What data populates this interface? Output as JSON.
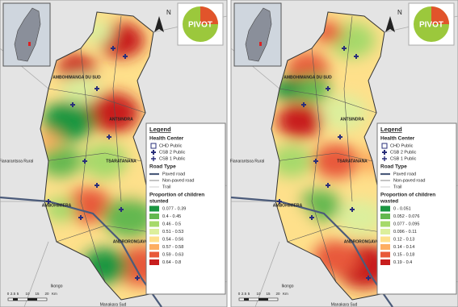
{
  "panels": [
    {
      "logo": "PIVOT",
      "north": "N",
      "places": [
        "AMBOHIMANGA DU SUD",
        "ANTSINDRA",
        "TSARATANANA",
        "AMBOHIMIERA",
        "ANDRORONGAVOLA",
        "Fianarantsoa Rural",
        "Ikongo",
        "Manakara Sud"
      ],
      "legend": {
        "title": "Legend",
        "health_title": "Health Center",
        "health_items": [
          "CHD Public",
          "CSB 2 Public",
          "CSB 1 Public"
        ],
        "road_title": "Road Type",
        "road_items": [
          "Paved road",
          "Non-paved road",
          "Trail"
        ],
        "prop_title": [
          "Proportion of children",
          "stunted"
        ],
        "classes": [
          {
            "label": "0.077 - 0.39",
            "color": "#1a9641"
          },
          {
            "label": "0.4 - 0.45",
            "color": "#63b84f"
          },
          {
            "label": "0.46 - 0.5",
            "color": "#a6d96a"
          },
          {
            "label": "0.51 - 0.53",
            "color": "#dcef9c"
          },
          {
            "label": "0.54 - 0.56",
            "color": "#fee08b"
          },
          {
            "label": "0.57 - 0.58",
            "color": "#fdae61"
          },
          {
            "label": "0.59 - 0.63",
            "color": "#e8593a"
          },
          {
            "label": "0.64 - 0.8",
            "color": "#c81e1e"
          }
        ]
      },
      "scale": {
        "ticks": [
          "0",
          "2.5",
          "5",
          "10",
          "15",
          "20"
        ],
        "unit": "Km"
      }
    },
    {
      "logo": "PIVOT",
      "north": "N",
      "places": [
        "AMBOHIMANGA DU SUD",
        "ANTSINDRA",
        "TSARATANANA",
        "AMBOHIMIERA",
        "ANDRORONGAVOLA",
        "Fianarantsoa Rural",
        "Ikongo",
        "Manakara Sud"
      ],
      "legend": {
        "title": "Legend",
        "health_title": "Health Center",
        "health_items": [
          "CHD Public",
          "CSB 2 Public",
          "CSB 1 Public"
        ],
        "road_title": "Road Type",
        "road_items": [
          "Paved road",
          "Non-paved road",
          "Trail"
        ],
        "prop_title": [
          "Proportion of children",
          "wasted"
        ],
        "classes": [
          {
            "label": "0 - 0.051",
            "color": "#1a9641"
          },
          {
            "label": "0.052 - 0.076",
            "color": "#63b84f"
          },
          {
            "label": "0.077 - 0.095",
            "color": "#a6d96a"
          },
          {
            "label": "0.096 - 0.11",
            "color": "#dcef9c"
          },
          {
            "label": "0.12 - 0.13",
            "color": "#fee08b"
          },
          {
            "label": "0.14 - 0.14",
            "color": "#fdae61"
          },
          {
            "label": "0.15 - 0.18",
            "color": "#e8593a"
          },
          {
            "label": "0.19 - 0.4",
            "color": "#c81e1e"
          }
        ]
      },
      "scale": {
        "ticks": [
          "0",
          "2.5",
          "5",
          "10",
          "15",
          "20"
        ],
        "unit": "Km"
      }
    }
  ]
}
